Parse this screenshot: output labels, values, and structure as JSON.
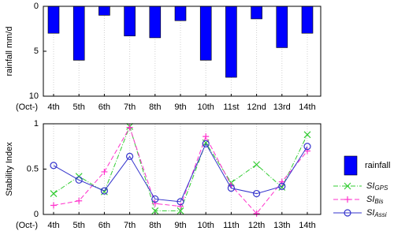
{
  "chart_data": [
    {
      "type": "bar",
      "ylabel": "rainfall mm/d",
      "xlabel": "(Oct-)",
      "categories": [
        "4th",
        "5th",
        "6th",
        "7th",
        "8th",
        "9th",
        "10th",
        "11st",
        "12nd",
        "13rd",
        "14th"
      ],
      "series": [
        {
          "name": "rainfall",
          "color": "#0000ff",
          "values": [
            3.0,
            6.0,
            1.0,
            3.3,
            3.5,
            1.6,
            6.0,
            7.9,
            1.4,
            4.6,
            3.0
          ]
        }
      ],
      "ylim": [
        0,
        10
      ],
      "yticks": [
        0,
        5,
        10
      ],
      "y_inverted": true,
      "grid": true,
      "legend": "right"
    },
    {
      "type": "line",
      "ylabel": "Stability Index",
      "xlabel": "(Oct-)",
      "categories": [
        "4th",
        "5th",
        "6th",
        "7th",
        "8th",
        "9th",
        "10th",
        "11th",
        "12th",
        "13th",
        "14th"
      ],
      "series": [
        {
          "name": "SI",
          "name_sub": "GPS",
          "color": "#33cc33",
          "marker": "x",
          "dash": "6 2 1 2",
          "values": [
            0.23,
            0.42,
            0.25,
            0.97,
            0.04,
            0.04,
            0.79,
            0.35,
            0.55,
            0.3,
            0.88
          ]
        },
        {
          "name": "SI",
          "name_sub": "Bis",
          "color": "#ff33cc",
          "marker": "+",
          "dash": "6 3",
          "values": [
            0.1,
            0.15,
            0.47,
            0.96,
            0.12,
            0.09,
            0.86,
            0.32,
            0.01,
            0.36,
            0.7
          ]
        },
        {
          "name": "SI",
          "name_sub": "Assi",
          "color": "#3333cc",
          "marker": "o",
          "dash": "none",
          "values": [
            0.54,
            0.38,
            0.26,
            0.64,
            0.17,
            0.14,
            0.78,
            0.29,
            0.23,
            0.31,
            0.75
          ]
        }
      ],
      "ylim": [
        0,
        1
      ],
      "yticks": [
        0,
        0.5,
        1
      ],
      "grid": true,
      "legend": "right"
    }
  ]
}
